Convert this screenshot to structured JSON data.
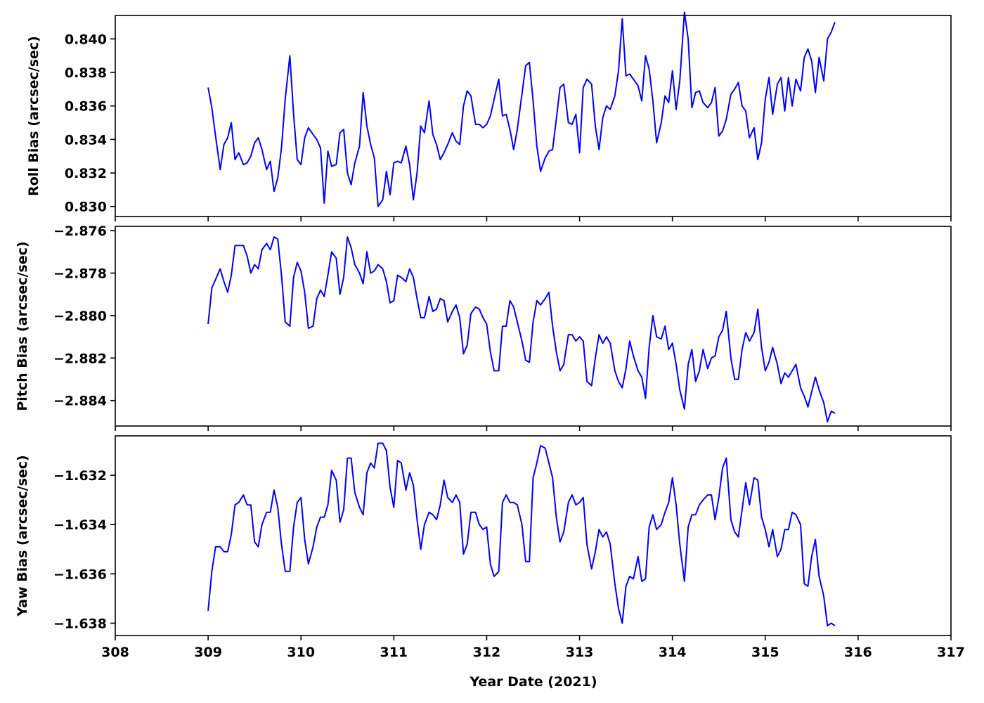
{
  "chart_data": {
    "type": "line",
    "color": "#0000ff",
    "xlabel": "Year Date (2021)",
    "xlim": [
      308,
      317
    ],
    "xticks": [
      308,
      309,
      310,
      311,
      312,
      313,
      314,
      315,
      316,
      317
    ],
    "panels": [
      {
        "ylabel": "Roll Bias (arcsec/sec)",
        "ylim": [
          0.8294,
          0.8414
        ],
        "yticks": [
          "0.830",
          "0.832",
          "0.834",
          "0.836",
          "0.838",
          "0.840"
        ],
        "x": [
          309.0,
          309.04,
          309.08,
          309.13,
          309.17,
          309.21,
          309.25,
          309.29,
          309.33,
          309.38,
          309.42,
          309.46,
          309.5,
          309.54,
          309.58,
          309.63,
          309.67,
          309.71,
          309.75,
          309.79,
          309.83,
          309.88,
          309.92,
          309.96,
          310.0,
          310.04,
          310.08,
          310.13,
          310.17,
          310.21,
          310.25,
          310.29,
          310.33,
          310.38,
          310.42,
          310.46,
          310.5,
          310.54,
          310.58,
          310.63,
          310.67,
          310.71,
          310.75,
          310.79,
          310.83,
          310.88,
          310.92,
          310.96,
          311.0,
          311.04,
          311.08,
          311.13,
          311.17,
          311.21,
          311.25,
          311.29,
          311.33,
          311.38,
          311.42,
          311.46,
          311.5,
          311.54,
          311.58,
          311.63,
          311.67,
          311.71,
          311.75,
          311.79,
          311.83,
          311.88,
          311.92,
          311.96,
          312.0,
          312.04,
          312.08,
          312.13,
          312.17,
          312.21,
          312.25,
          312.29,
          312.33,
          312.38,
          312.42,
          312.46,
          312.5,
          312.54,
          312.58,
          312.63,
          312.67,
          312.71,
          312.75,
          312.79,
          312.83,
          312.88,
          312.92,
          312.96,
          313.0,
          313.04,
          313.08,
          313.13,
          313.17,
          313.21,
          313.25,
          313.29,
          313.33,
          313.38,
          313.42,
          313.46,
          313.5,
          313.54,
          313.58,
          313.63,
          313.67,
          313.71,
          313.75,
          313.79,
          313.83,
          313.88,
          313.92,
          313.96,
          314.0,
          314.04,
          314.08,
          314.13,
          314.17,
          314.21,
          314.25,
          314.29,
          314.33,
          314.38,
          314.42,
          314.46,
          314.5,
          314.54,
          314.58,
          314.63,
          314.67,
          314.71,
          314.75,
          314.79,
          314.83,
          314.88,
          314.92,
          314.96,
          315.0,
          315.04,
          315.08,
          315.13,
          315.17,
          315.21,
          315.25,
          315.29,
          315.33,
          315.38,
          315.42,
          315.46,
          315.5,
          315.54,
          315.58,
          315.63,
          315.67,
          315.71,
          315.75
        ],
        "y": [
          0.8371,
          0.8359,
          0.8342,
          0.8322,
          0.8337,
          0.8341,
          0.835,
          0.8328,
          0.8332,
          0.8325,
          0.8326,
          0.833,
          0.8338,
          0.8341,
          0.8334,
          0.8322,
          0.8327,
          0.8309,
          0.8317,
          0.8335,
          0.8364,
          0.839,
          0.8355,
          0.8328,
          0.8325,
          0.8341,
          0.8347,
          0.8343,
          0.834,
          0.8335,
          0.8302,
          0.8333,
          0.8324,
          0.8325,
          0.8344,
          0.8346,
          0.832,
          0.8313,
          0.8326,
          0.8336,
          0.8368,
          0.8348,
          0.8337,
          0.8329,
          0.83,
          0.8304,
          0.8321,
          0.8307,
          0.8326,
          0.8327,
          0.8326,
          0.8336,
          0.8325,
          0.8304,
          0.832,
          0.8348,
          0.8344,
          0.8363,
          0.8343,
          0.8337,
          0.8328,
          0.8332,
          0.8337,
          0.8344,
          0.8339,
          0.8337,
          0.836,
          0.8369,
          0.8366,
          0.8349,
          0.8349,
          0.8347,
          0.8349,
          0.8354,
          0.8364,
          0.8376,
          0.8354,
          0.8355,
          0.8346,
          0.8334,
          0.8346,
          0.8367,
          0.8384,
          0.8386,
          0.8363,
          0.8336,
          0.8321,
          0.8329,
          0.8333,
          0.8334,
          0.8352,
          0.8371,
          0.8373,
          0.835,
          0.8349,
          0.8355,
          0.8332,
          0.8371,
          0.8376,
          0.8373,
          0.8348,
          0.8334,
          0.8353,
          0.836,
          0.8358,
          0.8366,
          0.8381,
          0.8412,
          0.8378,
          0.8379,
          0.8376,
          0.8372,
          0.8363,
          0.839,
          0.8382,
          0.8363,
          0.8338,
          0.835,
          0.8366,
          0.8362,
          0.8381,
          0.8358,
          0.8375,
          0.8416,
          0.84,
          0.8359,
          0.8368,
          0.8369,
          0.8362,
          0.8359,
          0.8362,
          0.8371,
          0.8342,
          0.8345,
          0.8352,
          0.8367,
          0.837,
          0.8374,
          0.836,
          0.8357,
          0.8341,
          0.8347,
          0.8328,
          0.8338,
          0.8364,
          0.8377,
          0.8355,
          0.8373,
          0.8377,
          0.8357,
          0.8377,
          0.836,
          0.8376,
          0.8369,
          0.8389,
          0.8394,
          0.8387,
          0.8368,
          0.8389,
          0.8375,
          0.84,
          0.8404,
          0.841
        ]
      },
      {
        "ylabel": "Pitch Bias (arcsec/sec)",
        "ylim": [
          -2.8852,
          -2.8758
        ],
        "yticks": [
          "−2.884",
          "−2.882",
          "−2.880",
          "−2.878",
          "−2.876"
        ],
        "x": [
          309.0,
          309.04,
          309.08,
          309.13,
          309.17,
          309.21,
          309.25,
          309.29,
          309.33,
          309.38,
          309.42,
          309.46,
          309.5,
          309.54,
          309.58,
          309.63,
          309.67,
          309.71,
          309.75,
          309.79,
          309.83,
          309.88,
          309.92,
          309.96,
          310.0,
          310.04,
          310.08,
          310.13,
          310.17,
          310.21,
          310.25,
          310.29,
          310.33,
          310.38,
          310.42,
          310.46,
          310.5,
          310.54,
          310.58,
          310.63,
          310.67,
          310.71,
          310.75,
          310.79,
          310.83,
          310.88,
          310.92,
          310.96,
          311.0,
          311.04,
          311.08,
          311.13,
          311.17,
          311.21,
          311.25,
          311.29,
          311.33,
          311.38,
          311.42,
          311.46,
          311.5,
          311.54,
          311.58,
          311.63,
          311.67,
          311.71,
          311.75,
          311.79,
          311.83,
          311.88,
          311.92,
          311.96,
          312.0,
          312.04,
          312.08,
          312.13,
          312.17,
          312.21,
          312.25,
          312.29,
          312.33,
          312.38,
          312.42,
          312.46,
          312.5,
          312.54,
          312.58,
          312.63,
          312.67,
          312.71,
          312.75,
          312.79,
          312.83,
          312.88,
          312.92,
          312.96,
          313.0,
          313.04,
          313.08,
          313.13,
          313.17,
          313.21,
          313.25,
          313.29,
          313.33,
          313.38,
          313.42,
          313.46,
          313.5,
          313.54,
          313.58,
          313.63,
          313.67,
          313.71,
          313.75,
          313.79,
          313.83,
          313.88,
          313.92,
          313.96,
          314.0,
          314.04,
          314.08,
          314.13,
          314.17,
          314.21,
          314.25,
          314.29,
          314.33,
          314.38,
          314.42,
          314.46,
          314.5,
          314.54,
          314.58,
          314.63,
          314.67,
          314.71,
          314.75,
          314.79,
          314.83,
          314.88,
          314.92,
          314.96,
          315.0,
          315.04,
          315.08,
          315.13,
          315.17,
          315.21,
          315.25,
          315.29,
          315.33,
          315.38,
          315.42,
          315.46,
          315.5,
          315.54,
          315.58,
          315.63,
          315.67,
          315.71,
          315.75
        ],
        "y": [
          -2.8804,
          -2.8787,
          -2.8783,
          -2.8778,
          -2.8784,
          -2.8789,
          -2.8781,
          -2.8767,
          -2.8767,
          -2.8767,
          -2.8772,
          -2.878,
          -2.8776,
          -2.8778,
          -2.8769,
          -2.8766,
          -2.8769,
          -2.8763,
          -2.8764,
          -2.8781,
          -2.8803,
          -2.8805,
          -2.8782,
          -2.8775,
          -2.8779,
          -2.8789,
          -2.8806,
          -2.8805,
          -2.8792,
          -2.8788,
          -2.8791,
          -2.8781,
          -2.877,
          -2.8773,
          -2.879,
          -2.8782,
          -2.8763,
          -2.8768,
          -2.8776,
          -2.878,
          -2.8785,
          -2.877,
          -2.878,
          -2.8779,
          -2.8776,
          -2.8778,
          -2.8784,
          -2.8794,
          -2.8793,
          -2.8781,
          -2.8782,
          -2.8784,
          -2.8778,
          -2.8782,
          -2.8792,
          -2.8801,
          -2.8801,
          -2.8791,
          -2.8798,
          -2.8797,
          -2.8792,
          -2.8793,
          -2.8803,
          -2.8798,
          -2.8795,
          -2.8801,
          -2.8818,
          -2.8814,
          -2.8799,
          -2.8796,
          -2.8797,
          -2.8801,
          -2.8804,
          -2.8817,
          -2.8826,
          -2.8826,
          -2.8805,
          -2.8805,
          -2.8793,
          -2.8796,
          -2.8803,
          -2.8812,
          -2.8821,
          -2.8822,
          -2.8803,
          -2.8793,
          -2.8795,
          -2.8792,
          -2.8789,
          -2.8805,
          -2.8817,
          -2.8826,
          -2.8823,
          -2.8809,
          -2.8809,
          -2.8812,
          -2.881,
          -2.8812,
          -2.8831,
          -2.8833,
          -2.882,
          -2.8809,
          -2.8813,
          -2.881,
          -2.8813,
          -2.8826,
          -2.8831,
          -2.8834,
          -2.8825,
          -2.8812,
          -2.8819,
          -2.8826,
          -2.8829,
          -2.8839,
          -2.8815,
          -2.88,
          -2.881,
          -2.8811,
          -2.8805,
          -2.8816,
          -2.8813,
          -2.8823,
          -2.8835,
          -2.8844,
          -2.8823,
          -2.8816,
          -2.8831,
          -2.8826,
          -2.8816,
          -2.8825,
          -2.882,
          -2.8819,
          -2.881,
          -2.8807,
          -2.8798,
          -2.882,
          -2.883,
          -2.883,
          -2.8816,
          -2.8808,
          -2.8812,
          -2.8808,
          -2.8797,
          -2.8815,
          -2.8826,
          -2.8822,
          -2.8815,
          -2.8823,
          -2.8832,
          -2.8827,
          -2.8829,
          -2.8826,
          -2.8823,
          -2.8834,
          -2.8838,
          -2.8843,
          -2.8836,
          -2.8829,
          -2.8835,
          -2.8841,
          -2.885,
          -2.8845,
          -2.8846
        ]
      },
      {
        "ylabel": "Yaw Bias (arcsec/sec)",
        "ylim": [
          -1.6385,
          -1.6304
        ],
        "yticks": [
          "−1.638",
          "−1.636",
          "−1.634",
          "−1.632"
        ],
        "x": [
          309.0,
          309.04,
          309.08,
          309.13,
          309.17,
          309.21,
          309.25,
          309.29,
          309.33,
          309.38,
          309.42,
          309.46,
          309.5,
          309.54,
          309.58,
          309.63,
          309.67,
          309.71,
          309.75,
          309.79,
          309.83,
          309.88,
          309.92,
          309.96,
          310.0,
          310.04,
          310.08,
          310.13,
          310.17,
          310.21,
          310.25,
          310.29,
          310.33,
          310.38,
          310.42,
          310.46,
          310.5,
          310.54,
          310.58,
          310.63,
          310.67,
          310.71,
          310.75,
          310.79,
          310.83,
          310.88,
          310.92,
          310.96,
          311.0,
          311.04,
          311.08,
          311.13,
          311.17,
          311.21,
          311.25,
          311.29,
          311.33,
          311.38,
          311.42,
          311.46,
          311.5,
          311.54,
          311.58,
          311.63,
          311.67,
          311.71,
          311.75,
          311.79,
          311.83,
          311.88,
          311.92,
          311.96,
          312.0,
          312.04,
          312.08,
          312.13,
          312.17,
          312.21,
          312.25,
          312.29,
          312.33,
          312.38,
          312.42,
          312.46,
          312.5,
          312.54,
          312.58,
          312.63,
          312.67,
          312.71,
          312.75,
          312.79,
          312.83,
          312.88,
          312.92,
          312.96,
          313.0,
          313.04,
          313.08,
          313.13,
          313.17,
          313.21,
          313.25,
          313.29,
          313.33,
          313.38,
          313.42,
          313.46,
          313.5,
          313.54,
          313.58,
          313.63,
          313.67,
          313.71,
          313.75,
          313.79,
          313.83,
          313.88,
          313.92,
          313.96,
          314.0,
          314.04,
          314.08,
          314.13,
          314.17,
          314.21,
          314.25,
          314.29,
          314.33,
          314.38,
          314.42,
          314.46,
          314.5,
          314.54,
          314.58,
          314.63,
          314.67,
          314.71,
          314.75,
          314.79,
          314.83,
          314.88,
          314.92,
          314.96,
          315.0,
          315.04,
          315.08,
          315.13,
          315.17,
          315.21,
          315.25,
          315.29,
          315.33,
          315.38,
          315.42,
          315.46,
          315.5,
          315.54,
          315.58,
          315.63,
          315.67,
          315.71,
          315.75
        ],
        "y": [
          -1.6375,
          -1.6359,
          -1.6349,
          -1.6349,
          -1.6351,
          -1.6351,
          -1.6344,
          -1.6332,
          -1.6331,
          -1.6328,
          -1.6332,
          -1.6332,
          -1.6347,
          -1.6349,
          -1.634,
          -1.6335,
          -1.6335,
          -1.6326,
          -1.6333,
          -1.6348,
          -1.6359,
          -1.6359,
          -1.6341,
          -1.6331,
          -1.6329,
          -1.6346,
          -1.6356,
          -1.6349,
          -1.6341,
          -1.6337,
          -1.6337,
          -1.6332,
          -1.6318,
          -1.6322,
          -1.6339,
          -1.6334,
          -1.6313,
          -1.6313,
          -1.6327,
          -1.6333,
          -1.6336,
          -1.6319,
          -1.6315,
          -1.6317,
          -1.6307,
          -1.6307,
          -1.631,
          -1.6325,
          -1.6333,
          -1.6314,
          -1.6315,
          -1.6326,
          -1.6319,
          -1.6324,
          -1.6338,
          -1.635,
          -1.634,
          -1.6335,
          -1.6336,
          -1.6338,
          -1.6332,
          -1.6322,
          -1.6329,
          -1.6331,
          -1.6328,
          -1.6331,
          -1.6352,
          -1.6348,
          -1.6335,
          -1.6335,
          -1.634,
          -1.6342,
          -1.6341,
          -1.6356,
          -1.6361,
          -1.6359,
          -1.6331,
          -1.6328,
          -1.6331,
          -1.6331,
          -1.6332,
          -1.634,
          -1.6355,
          -1.6355,
          -1.6321,
          -1.6315,
          -1.6308,
          -1.6309,
          -1.6315,
          -1.6321,
          -1.6337,
          -1.6347,
          -1.6343,
          -1.6331,
          -1.6328,
          -1.6332,
          -1.6331,
          -1.6329,
          -1.6348,
          -1.6358,
          -1.6351,
          -1.6342,
          -1.6345,
          -1.6343,
          -1.6348,
          -1.6364,
          -1.6374,
          -1.638,
          -1.6365,
          -1.6361,
          -1.6362,
          -1.6353,
          -1.6363,
          -1.6362,
          -1.6341,
          -1.6336,
          -1.6342,
          -1.634,
          -1.6335,
          -1.6331,
          -1.6321,
          -1.6332,
          -1.6348,
          -1.6363,
          -1.6341,
          -1.6336,
          -1.6336,
          -1.6332,
          -1.633,
          -1.6328,
          -1.6328,
          -1.6338,
          -1.6329,
          -1.6317,
          -1.6313,
          -1.6338,
          -1.6343,
          -1.6345,
          -1.6334,
          -1.6323,
          -1.6332,
          -1.6321,
          -1.6322,
          -1.6337,
          -1.6342,
          -1.6349,
          -1.6342,
          -1.6353,
          -1.635,
          -1.6342,
          -1.6342,
          -1.6335,
          -1.6336,
          -1.634,
          -1.6364,
          -1.6365,
          -1.6353,
          -1.6346,
          -1.6361,
          -1.6369,
          -1.6381,
          -1.638,
          -1.6381
        ]
      }
    ]
  }
}
